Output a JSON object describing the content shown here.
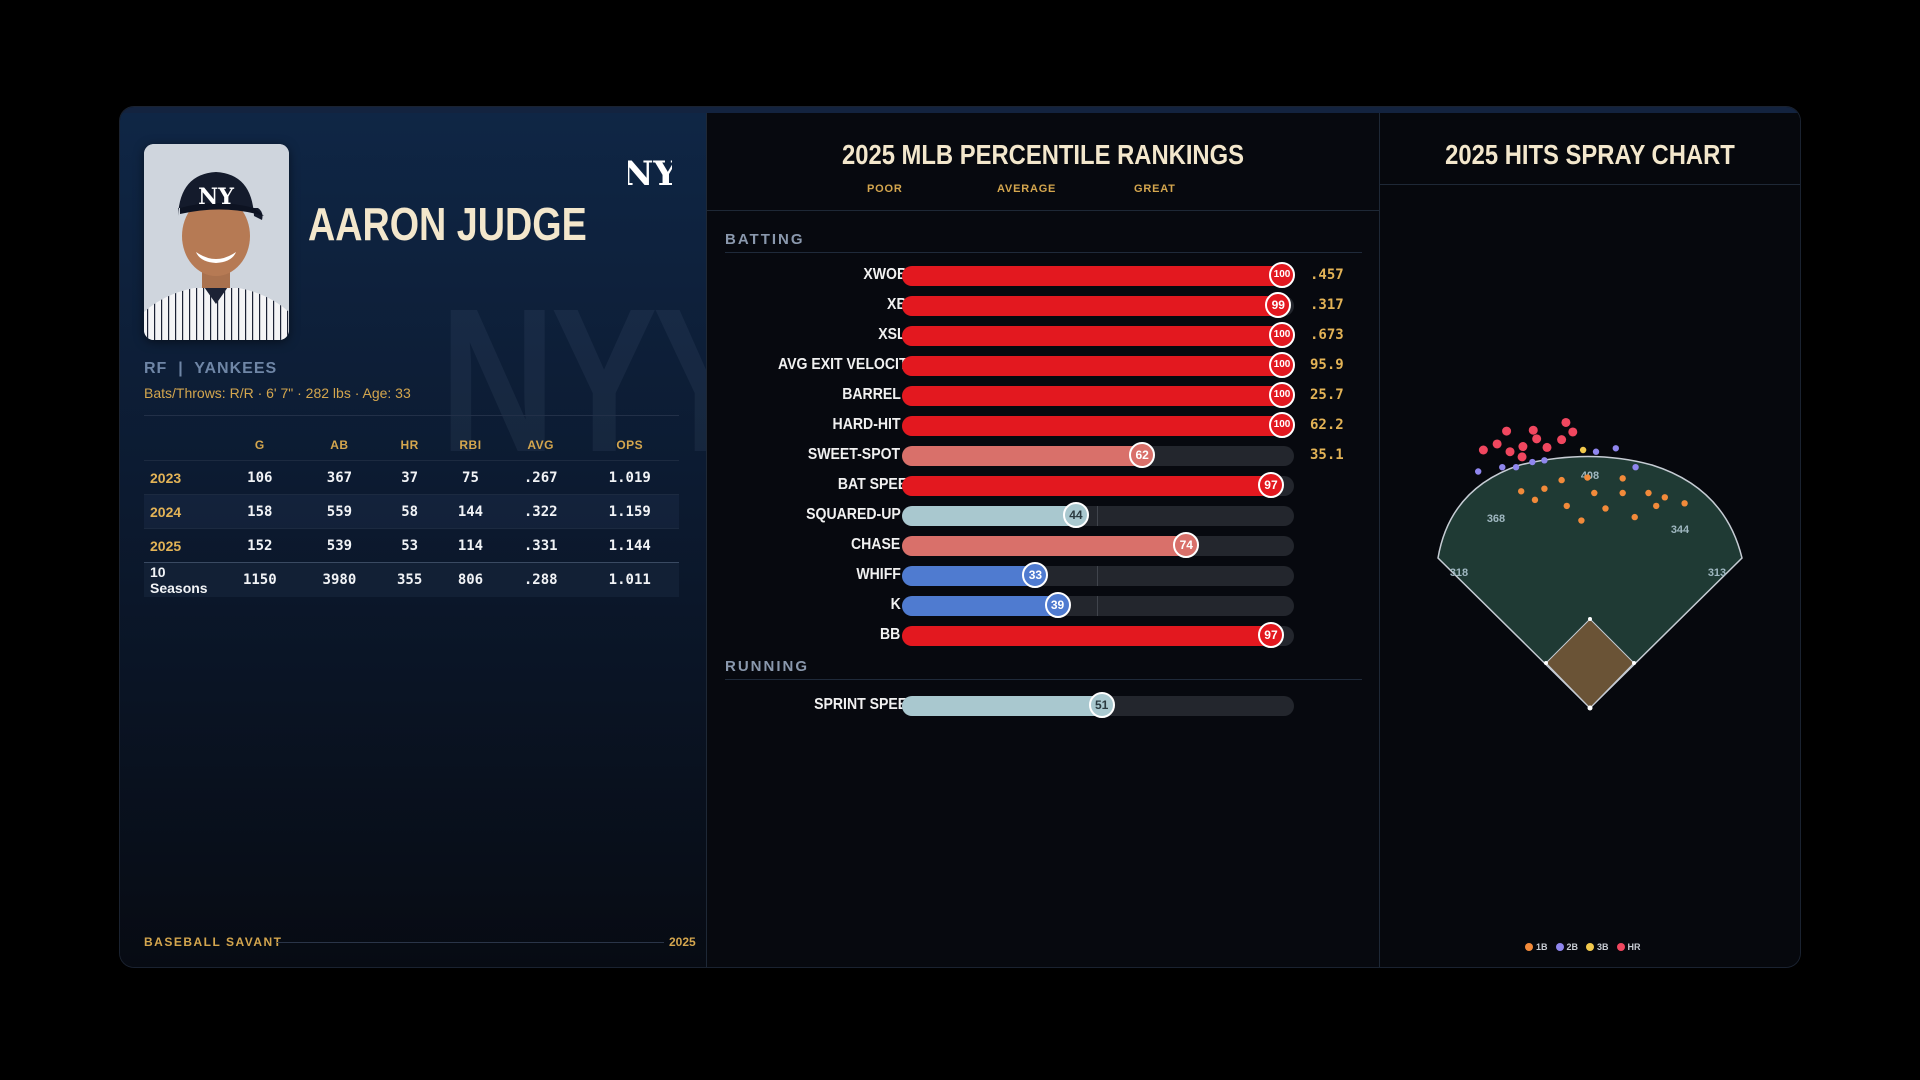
{
  "player": {
    "name": "AARON JUDGE",
    "position_team": "RF  |  YANKEES",
    "bio": "Bats/Throws: R/R · 6' 7\" · 282 lbs · Age: 33",
    "watermark": "NYY",
    "team_logo_icon": "ny-yankees-logo"
  },
  "stats": {
    "headers": [
      "",
      "G",
      "AB",
      "HR",
      "RBI",
      "AVG",
      "OPS"
    ],
    "rows": [
      {
        "year": "2023",
        "g": "106",
        "ab": "367",
        "hr": "37",
        "rbi": "75",
        "avg": ".267",
        "ops": "1.019"
      },
      {
        "year": "2024",
        "g": "158",
        "ab": "559",
        "hr": "58",
        "rbi": "144",
        "avg": ".322",
        "ops": "1.159"
      },
      {
        "year": "2025",
        "g": "152",
        "ab": "539",
        "hr": "53",
        "rbi": "114",
        "avg": ".331",
        "ops": "1.144"
      }
    ],
    "total": {
      "label": "10 Seasons",
      "g": "1150",
      "ab": "3980",
      "hr": "355",
      "rbi": "806",
      "avg": ".288",
      "ops": "1.011"
    }
  },
  "footer": {
    "source": "BASEBALL SAVANT",
    "year": "2025"
  },
  "percentiles": {
    "title": "2025 MLB PERCENTILE RANKINGS",
    "scale": {
      "poor": "POOR",
      "average": "AVERAGE",
      "great": "GREAT"
    },
    "sections": {
      "batting": "BATTING",
      "running": "RUNNING"
    },
    "colors": {
      "elite": "#e3181f",
      "above": "#d9706a",
      "middle": "#a9c8cf",
      "below": "#4f7bd0"
    },
    "batting": [
      {
        "label": "XWOBA",
        "percentile": 100,
        "value": ".457",
        "tier": "elite"
      },
      {
        "label": "XBA",
        "percentile": 99,
        "value": ".317",
        "tier": "elite"
      },
      {
        "label": "XSLG",
        "percentile": 100,
        "value": ".673",
        "tier": "elite"
      },
      {
        "label": "AVG EXIT VELOCITY",
        "percentile": 100,
        "value": "95.9",
        "tier": "elite"
      },
      {
        "label": "BARREL %",
        "percentile": 100,
        "value": "25.7",
        "tier": "elite"
      },
      {
        "label": "HARD-HIT %",
        "percentile": 100,
        "value": "62.2",
        "tier": "elite"
      },
      {
        "label": "SWEET-SPOT %",
        "percentile": 62,
        "value": "35.1",
        "tier": "above"
      },
      {
        "label": "BAT SPEED",
        "percentile": 97,
        "value": "",
        "tier": "elite"
      },
      {
        "label": "SQUARED-UP %",
        "percentile": 44,
        "value": "",
        "tier": "middle"
      },
      {
        "label": "CHASE %",
        "percentile": 74,
        "value": "",
        "tier": "above"
      },
      {
        "label": "WHIFF %",
        "percentile": 33,
        "value": "",
        "tier": "below"
      },
      {
        "label": "K %",
        "percentile": 39,
        "value": "",
        "tier": "below"
      },
      {
        "label": "BB %",
        "percentile": 97,
        "value": "",
        "tier": "elite"
      }
    ],
    "running": [
      {
        "label": "SPRINT SPEED",
        "percentile": 51,
        "value": "",
        "tier": "middle"
      }
    ]
  },
  "spray": {
    "title": "2025 HITS SPRAY CHART",
    "distances": {
      "center": "408",
      "left_center": "368",
      "right_center": "344",
      "left_line": "318",
      "right_line": "313"
    },
    "legend": [
      {
        "label": "1B",
        "color": "#f28a3a"
      },
      {
        "label": "2B",
        "color": "#8f86ee"
      },
      {
        "label": "3B",
        "color": "#f2c94c"
      },
      {
        "label": "HR",
        "color": "#f0475f"
      }
    ],
    "hits": [
      {
        "type": "HR",
        "x": -97,
        "y": 322
      },
      {
        "type": "HR",
        "x": -108,
        "y": 307
      },
      {
        "type": "HR",
        "x": -93,
        "y": 298
      },
      {
        "type": "HR",
        "x": -78,
        "y": 304
      },
      {
        "type": "HR",
        "x": -62,
        "y": 313
      },
      {
        "type": "HR",
        "x": -50,
        "y": 303
      },
      {
        "type": "HR",
        "x": -33,
        "y": 312
      },
      {
        "type": "HR",
        "x": -20,
        "y": 321
      },
      {
        "type": "HR",
        "x": -28,
        "y": 332
      },
      {
        "type": "HR",
        "x": -79,
        "y": 292
      },
      {
        "type": "HR",
        "x": -124,
        "y": 300
      },
      {
        "type": "HR",
        "x": -66,
        "y": 323
      },
      {
        "type": "3B",
        "x": -8,
        "y": 300
      },
      {
        "type": "2B",
        "x": -102,
        "y": 280
      },
      {
        "type": "2B",
        "x": -86,
        "y": 280
      },
      {
        "type": "2B",
        "x": -67,
        "y": 286
      },
      {
        "type": "2B",
        "x": -53,
        "y": 288
      },
      {
        "type": "2B",
        "x": 7,
        "y": 298
      },
      {
        "type": "2B",
        "x": 30,
        "y": 302
      },
      {
        "type": "2B",
        "x": 53,
        "y": 280
      },
      {
        "type": "2B",
        "x": -130,
        "y": 275
      },
      {
        "type": "1B",
        "x": -80,
        "y": 252
      },
      {
        "type": "1B",
        "x": -53,
        "y": 255
      },
      {
        "type": "1B",
        "x": -27,
        "y": 235
      },
      {
        "type": "1B",
        "x": -33,
        "y": 265
      },
      {
        "type": "1B",
        "x": -10,
        "y": 218
      },
      {
        "type": "1B",
        "x": 5,
        "y": 250
      },
      {
        "type": "1B",
        "x": 18,
        "y": 232
      },
      {
        "type": "1B",
        "x": 38,
        "y": 250
      },
      {
        "type": "1B",
        "x": 52,
        "y": 222
      },
      {
        "type": "1B",
        "x": 68,
        "y": 250
      },
      {
        "type": "1B",
        "x": 87,
        "y": 245
      },
      {
        "type": "1B",
        "x": 77,
        "y": 235
      },
      {
        "type": "1B",
        "x": 110,
        "y": 238
      },
      {
        "type": "1B",
        "x": -64,
        "y": 242
      },
      {
        "type": "1B",
        "x": -3,
        "y": 268
      },
      {
        "type": "1B",
        "x": 38,
        "y": 267
      }
    ]
  }
}
